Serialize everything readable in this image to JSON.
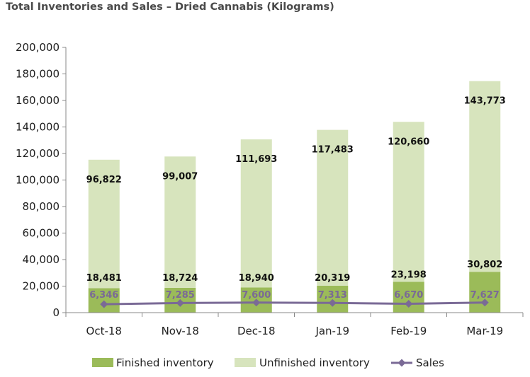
{
  "chart_data": {
    "type": "bar",
    "title": "Total Inventories and Sales – Dried Cannabis (Kilograms)",
    "categories": [
      "Oct-18",
      "Nov-18",
      "Dec-18",
      "Jan-19",
      "Feb-19",
      "Mar-19"
    ],
    "series": [
      {
        "name": "Finished inventory",
        "type": "bar",
        "stacked": true,
        "color": "#9bbb59",
        "values": [
          18481,
          18724,
          18940,
          20319,
          23198,
          30802
        ],
        "labels": [
          "18,481",
          "18,724",
          "18,940",
          "20,319",
          "23,198",
          "30,802"
        ]
      },
      {
        "name": "Unfinished inventory",
        "type": "bar",
        "stacked": true,
        "color": "#d7e4bd",
        "values": [
          96822,
          99007,
          111693,
          117483,
          120660,
          143773
        ],
        "labels": [
          "96,822",
          "99,007",
          "111,693",
          "117,483",
          "120,660",
          "143,773"
        ]
      },
      {
        "name": "Sales",
        "type": "line",
        "color": "#7a6a96",
        "values": [
          6346,
          7285,
          7600,
          7313,
          6670,
          7627
        ],
        "labels": [
          "6,346",
          "7,285",
          "7,600",
          "7,313",
          "6,670",
          "7,627"
        ]
      }
    ],
    "ylim": [
      0,
      200000
    ],
    "yticks": [
      0,
      20000,
      40000,
      60000,
      80000,
      100000,
      120000,
      140000,
      160000,
      180000,
      200000
    ],
    "ytick_labels": [
      "0",
      "20,000",
      "40,000",
      "60,000",
      "80,000",
      "100,000",
      "120,000",
      "140,000",
      "160,000",
      "180,000",
      "200,000"
    ],
    "legend_position": "bottom",
    "grid": false
  }
}
